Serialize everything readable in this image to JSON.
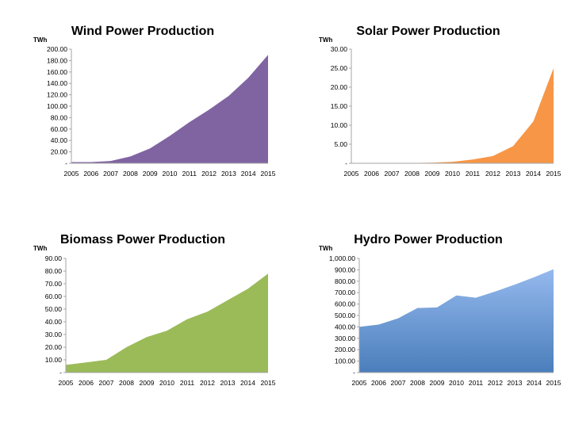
{
  "chart_data": [
    {
      "type": "area",
      "title": "Wind Power Production",
      "ylabel": "TWh",
      "xlabel": "",
      "x": [
        "2005",
        "2006",
        "2007",
        "2008",
        "2009",
        "2010",
        "2011",
        "2012",
        "2013",
        "2014",
        "2015"
      ],
      "series": [
        {
          "values": [
            2,
            2,
            4,
            12,
            26,
            48,
            72,
            94,
            118,
            150,
            190
          ]
        }
      ],
      "yticks": [
        "-",
        "20.00",
        "40.00",
        "60.00",
        "80.00",
        "100.00",
        "120.00",
        "140.00",
        "160.00",
        "180.00",
        "200.00"
      ],
      "ylim": [
        0,
        200
      ],
      "color": "#8064a2",
      "gradient": false,
      "grid": false,
      "legend": "none"
    },
    {
      "type": "area",
      "title": "Solar Power Production",
      "ylabel": "TWh",
      "xlabel": "",
      "x": [
        "2005",
        "2006",
        "2007",
        "2008",
        "2009",
        "2010",
        "2011",
        "2012",
        "2013",
        "2014",
        "2015"
      ],
      "series": [
        {
          "values": [
            0.05,
            0.05,
            0.05,
            0.08,
            0.15,
            0.4,
            1.0,
            1.9,
            4.5,
            11,
            25
          ]
        }
      ],
      "yticks": [
        "-",
        "5.00",
        "10.00",
        "15.00",
        "20.00",
        "25.00",
        "30.00"
      ],
      "ylim": [
        0,
        30
      ],
      "color": "#f79646",
      "gradient": false,
      "grid": false,
      "legend": "none"
    },
    {
      "type": "area",
      "title": "Biomass Power Production",
      "ylabel": "TWh",
      "xlabel": "",
      "x": [
        "2005",
        "2006",
        "2007",
        "2008",
        "2009",
        "2010",
        "2011",
        "2012",
        "2013",
        "2014",
        "2015"
      ],
      "series": [
        {
          "values": [
            6,
            8,
            10,
            20,
            28,
            33,
            42,
            48,
            57,
            66,
            78
          ]
        }
      ],
      "yticks": [
        "-",
        "10.00",
        "20.00",
        "30.00",
        "40.00",
        "50.00",
        "60.00",
        "70.00",
        "80.00",
        "90.00"
      ],
      "ylim": [
        0,
        90
      ],
      "color": "#9bbb59",
      "gradient": false,
      "grid": false,
      "legend": "none"
    },
    {
      "type": "area",
      "title": "Hydro Power Production",
      "ylabel": "TWh",
      "xlabel": "",
      "x": [
        "2005",
        "2006",
        "2007",
        "2008",
        "2009",
        "2010",
        "2011",
        "2012",
        "2013",
        "2014",
        "2015"
      ],
      "series": [
        {
          "values": [
            400,
            420,
            475,
            565,
            570,
            675,
            655,
            710,
            770,
            835,
            905
          ]
        }
      ],
      "yticks": [
        "-",
        "100.00",
        "200.00",
        "300.00",
        "400.00",
        "500.00",
        "600.00",
        "700.00",
        "800.00",
        "900.00",
        "1,000.00"
      ],
      "ylim": [
        0,
        1000
      ],
      "color": "#4a7ebb",
      "color_top": "#95b9ee",
      "gradient": true,
      "grid": false,
      "legend": "none"
    }
  ]
}
